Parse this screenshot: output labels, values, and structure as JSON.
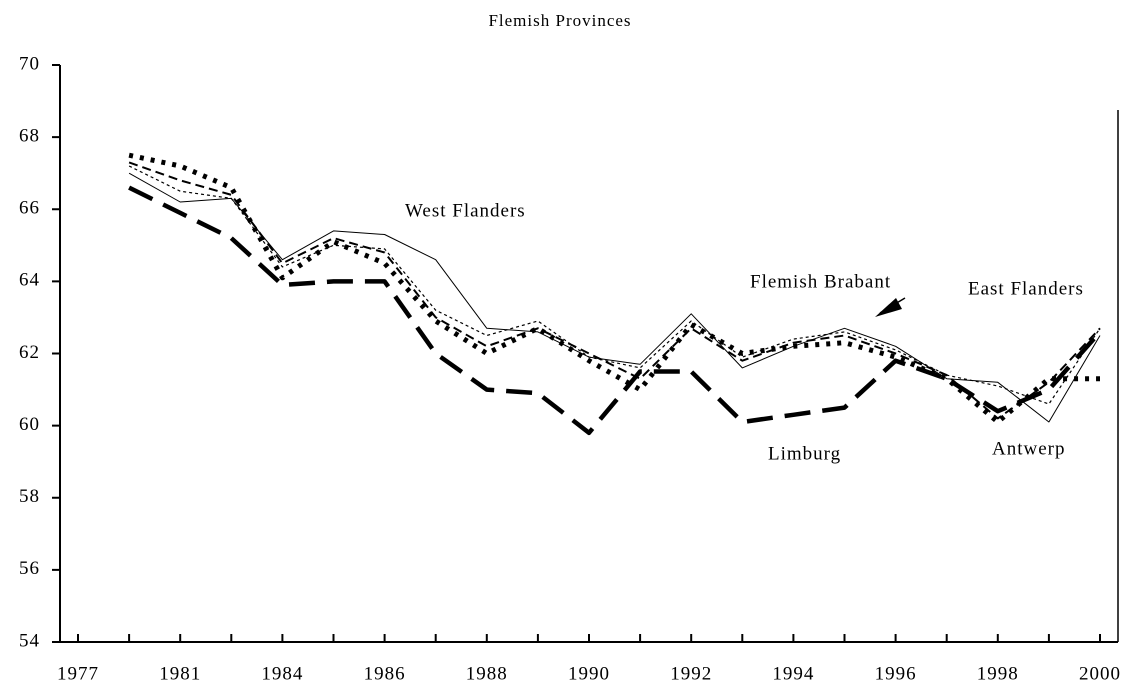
{
  "chart_data": {
    "type": "line",
    "title": "Flemish Provinces",
    "categories": [
      "1977",
      null,
      "1981",
      null,
      "1984",
      null,
      "1986",
      null,
      "1988",
      null,
      "1990",
      null,
      "1992",
      null,
      "1994",
      null,
      "1996",
      null,
      "1998",
      null,
      "2000"
    ],
    "ylim": [
      54,
      70
    ],
    "yticks": [
      54,
      56,
      58,
      60,
      62,
      64,
      66,
      68,
      70
    ],
    "series": [
      {
        "name": "Limburg",
        "color": "#000000",
        "dash": "26,12",
        "width": 4.5,
        "values": [
          null,
          66.6,
          65.9,
          65.2,
          63.9,
          64.0,
          64.0,
          62.0,
          61.0,
          60.9,
          59.8,
          61.5,
          61.5,
          60.1,
          60.3,
          60.5,
          61.8,
          61.3,
          60.4,
          61.0,
          62.6
        ]
      },
      {
        "name": "Antwerp",
        "color": "#000000",
        "dash": "4,7",
        "width": 5,
        "values": [
          null,
          67.5,
          67.2,
          66.6,
          64.1,
          65.1,
          64.5,
          62.9,
          62.0,
          62.7,
          61.8,
          61.0,
          62.8,
          62.0,
          62.2,
          62.3,
          61.9,
          61.3,
          60.1,
          61.3,
          61.3
        ]
      },
      {
        "name": "East Flanders",
        "color": "#000000",
        "dash": "9,5",
        "width": 2,
        "values": [
          null,
          67.3,
          66.8,
          66.4,
          64.5,
          65.2,
          64.8,
          63.0,
          62.2,
          62.7,
          62.0,
          61.3,
          62.7,
          61.8,
          62.3,
          62.5,
          62.0,
          61.4,
          60.2,
          61.2,
          62.7
        ]
      },
      {
        "name": "West Flanders",
        "color": "#000000",
        "dash": "none",
        "width": 1,
        "values": [
          null,
          67.0,
          66.2,
          66.3,
          64.6,
          65.4,
          65.3,
          64.6,
          62.7,
          62.6,
          61.9,
          61.7,
          63.1,
          61.6,
          62.2,
          62.7,
          62.2,
          61.3,
          61.2,
          60.1,
          62.5
        ]
      },
      {
        "name": "Flemish Brabant",
        "color": "#000000",
        "dash": "3,3",
        "width": 1.2,
        "values": [
          null,
          67.2,
          66.5,
          66.3,
          64.4,
          65.0,
          64.9,
          63.2,
          62.5,
          62.9,
          61.9,
          61.6,
          62.9,
          61.9,
          62.4,
          62.6,
          62.1,
          61.4,
          61.1,
          60.6,
          62.7
        ]
      }
    ]
  }
}
